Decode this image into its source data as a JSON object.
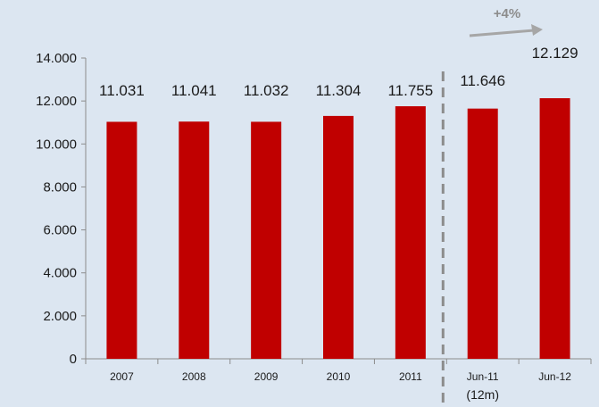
{
  "chart_data": {
    "type": "bar",
    "categories": [
      "2007",
      "2008",
      "2009",
      "2010",
      "2011",
      "Jun-11",
      "Jun-12"
    ],
    "values": [
      11031,
      11041,
      11032,
      11304,
      11755,
      11646,
      12129
    ],
    "data_labels": [
      "11.031",
      "11.041",
      "11.032",
      "11.304",
      "11.755",
      "11.646",
      "12.129"
    ],
    "category_sublabel": "(12m)",
    "growth_annotation": "+4%",
    "ylim": [
      0,
      14000
    ],
    "yticks": [
      0,
      2000,
      4000,
      6000,
      8000,
      10000,
      12000,
      14000
    ],
    "ytick_labels": [
      "0",
      "2.000",
      "4.000",
      "6.000",
      "8.000",
      "10.000",
      "12.000",
      "14.000"
    ],
    "grid": false,
    "title": "",
    "xlabel": "",
    "ylabel": "",
    "colors": {
      "bar": "#c00000",
      "background": "#dce6f1",
      "axis": "#8c8c8c",
      "separator": "#8c8c8c",
      "annotation": "#a6a6a6"
    }
  }
}
